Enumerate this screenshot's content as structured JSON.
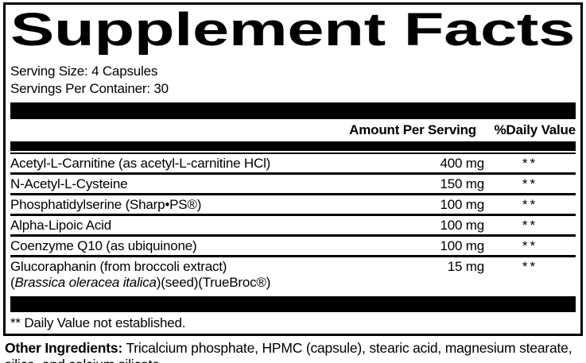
{
  "label": {
    "title": "Supplement Facts",
    "serving_size": "Serving Size: 4 Capsules",
    "servings_per_container": "Servings Per Container: 30",
    "columns": {
      "amount": "Amount Per Serving",
      "daily_value": "%Daily Value"
    },
    "rows": [
      {
        "name": "Acetyl-L-Carnitine (as acetyl-L-carnitine HCl)",
        "amount": "400 mg",
        "dv": "**"
      },
      {
        "name": "N-Acetyl-L-Cysteine",
        "amount": "150 mg",
        "dv": "**"
      },
      {
        "name": "Phosphatidylserine (Sharp•PS®)",
        "amount": "100 mg",
        "dv": "**"
      },
      {
        "name": "Alpha-Lipoic Acid",
        "amount": "100 mg",
        "dv": "**"
      },
      {
        "name": "Coenzyme Q10 (as ubiquinone)",
        "amount": "100 mg",
        "dv": "**"
      },
      {
        "name": "Glucoraphanin (from broccoli extract)",
        "name2_prefix": "(",
        "name2_italic": "Brassica oleracea italica",
        "name2_suffix": ")(seed)(TrueBroc®)",
        "amount": "15 mg",
        "dv": "**"
      }
    ],
    "footnote": "** Daily Value not established.",
    "other_ingredients_label": "Other Ingredients:",
    "other_ingredients_text": " Tricalcium phosphate, HPMC (capsule), stearic acid, magnesium stearate, silica, and calcium silicate."
  },
  "colors": {
    "ink": "#000000",
    "background": "#ffffff"
  }
}
